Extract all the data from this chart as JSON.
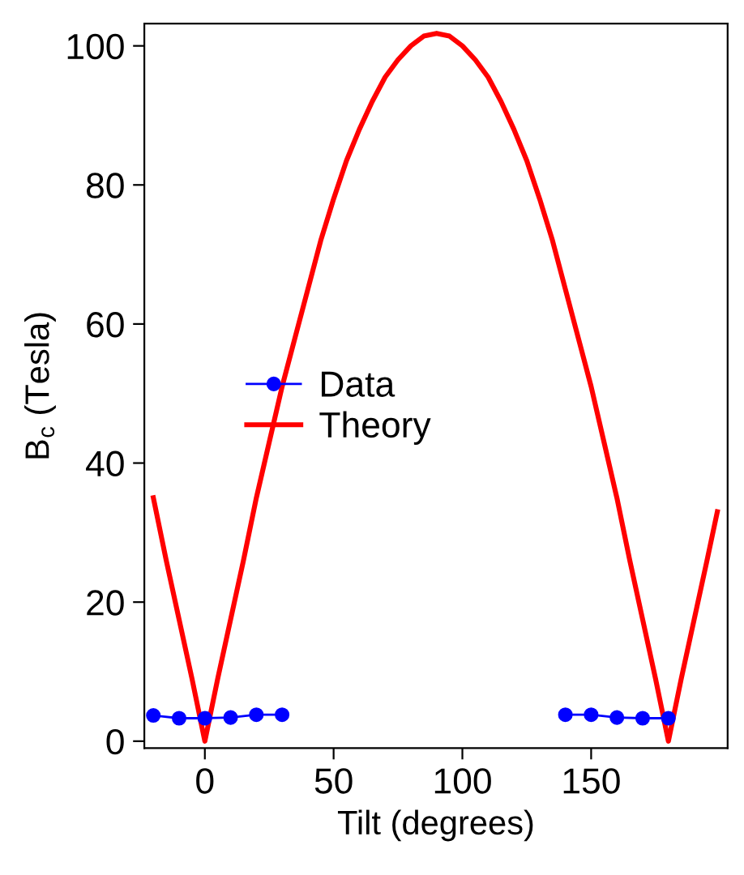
{
  "chart_data": {
    "type": "line",
    "xlabel": "Tilt (degrees)",
    "ylabel": "B$_{c}$ (Tesla)",
    "xlim": [
      -23.5,
      203
    ],
    "ylim": [
      -1,
      103.2
    ],
    "xticks": [
      0,
      50,
      100,
      150
    ],
    "yticks": [
      0,
      20,
      40,
      60,
      80,
      100
    ],
    "grid": false,
    "legend": "center left",
    "series": [
      {
        "name": "Data",
        "color": "#0000ff",
        "marker": "circle",
        "x": [
          -20,
          -10,
          0,
          10,
          20,
          30
        ],
        "values": [
          3.7,
          3.3,
          3.3,
          3.4,
          3.8,
          3.8
        ]
      },
      {
        "color": "#0000ff",
        "marker": "circle",
        "x": [
          140,
          150,
          160,
          170,
          180
        ],
        "values": [
          3.8,
          3.8,
          3.4,
          3.3,
          3.3
        ]
      },
      {
        "name": "Theory",
        "color": "#ff0000",
        "marker": "none",
        "x": [
          -20,
          -15,
          -10,
          -5,
          0,
          5,
          10,
          15,
          20,
          25,
          30,
          35,
          40,
          45,
          50,
          55,
          60,
          65,
          70,
          75,
          80,
          85,
          90,
          95,
          100,
          105,
          110,
          115,
          120,
          125,
          130,
          135,
          140,
          145,
          150,
          155,
          160,
          165,
          170,
          175,
          180,
          185,
          190,
          195,
          199
        ],
        "values": [
          35,
          26,
          17.5,
          9,
          0,
          9,
          17.5,
          26,
          35,
          43,
          51,
          58,
          65,
          72,
          78,
          83.5,
          88,
          92,
          95.5,
          98,
          100,
          101.4,
          101.8,
          101.4,
          100,
          98,
          95.5,
          92,
          88,
          83.5,
          78,
          72,
          65,
          58,
          51,
          43,
          35,
          26,
          17.5,
          9,
          0,
          9,
          17.5,
          26,
          33
        ]
      }
    ]
  }
}
